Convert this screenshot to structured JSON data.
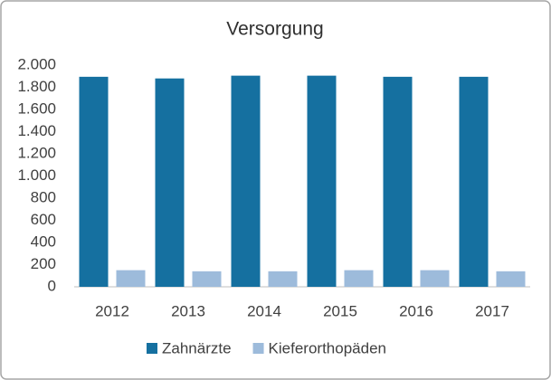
{
  "chart_data": {
    "type": "bar",
    "title": "Versorgung",
    "categories": [
      "2012",
      "2013",
      "2014",
      "2015",
      "2016",
      "2017"
    ],
    "series": [
      {
        "name": "Zahnärzte",
        "color": "#1570a0",
        "values": [
          1895,
          1880,
          1905,
          1905,
          1895,
          1895
        ]
      },
      {
        "name": "Kieferorthopäden",
        "color": "#9dbbdb",
        "values": [
          150,
          140,
          140,
          150,
          150,
          140
        ]
      }
    ],
    "ylim": [
      0,
      2000
    ],
    "yticks": [
      0,
      200,
      400,
      600,
      800,
      {
        "value": 1000,
        "label": "1.000"
      },
      {
        "value": 1200,
        "label": "1.200"
      },
      {
        "value": 1400,
        "label": "1.400"
      },
      {
        "value": 1600,
        "label": "1.600"
      },
      {
        "value": 1800,
        "label": "1.800"
      },
      {
        "value": 2000,
        "label": "2.000"
      }
    ],
    "grid": false,
    "legend": "bottom"
  }
}
